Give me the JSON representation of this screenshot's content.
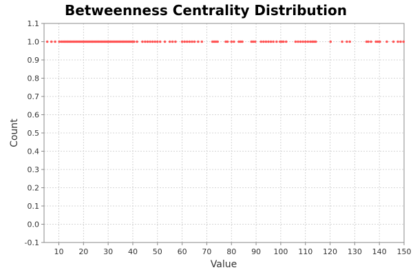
{
  "chart_data": {
    "type": "scatter",
    "title": "Betweenness Centrality Distribution",
    "xlabel": "Value",
    "ylabel": "Count",
    "xlim": [
      4,
      150
    ],
    "ylim": [
      -0.1,
      1.1
    ],
    "x_ticks": [
      10,
      20,
      30,
      40,
      50,
      60,
      70,
      80,
      90,
      100,
      110,
      120,
      130,
      140,
      150
    ],
    "y_ticks": [
      -0.1,
      0.0,
      0.1,
      0.2,
      0.3,
      0.4,
      0.5,
      0.6,
      0.7,
      0.8,
      0.9,
      1.0,
      1.1
    ],
    "grid": true,
    "legend": "none",
    "series": [
      {
        "color": "#ff5555",
        "points": [
          [
            5.3,
            1
          ],
          [
            7,
            1
          ],
          [
            8.5,
            1
          ],
          [
            10.2,
            1
          ],
          [
            11,
            1
          ],
          [
            11.7,
            1
          ],
          [
            12.3,
            1
          ],
          [
            12.9,
            1
          ],
          [
            13.5,
            1
          ],
          [
            14.1,
            1
          ],
          [
            14.7,
            1
          ],
          [
            15.3,
            1
          ],
          [
            15.9,
            1
          ],
          [
            16.5,
            1
          ],
          [
            17.1,
            1
          ],
          [
            17.7,
            1
          ],
          [
            18.3,
            1
          ],
          [
            18.9,
            1
          ],
          [
            19.5,
            1
          ],
          [
            20.1,
            1
          ],
          [
            20.7,
            1
          ],
          [
            21.3,
            1
          ],
          [
            21.9,
            1
          ],
          [
            22.5,
            1
          ],
          [
            23.1,
            1
          ],
          [
            23.7,
            1
          ],
          [
            24.3,
            1
          ],
          [
            24.9,
            1
          ],
          [
            25.5,
            1
          ],
          [
            26.1,
            1
          ],
          [
            26.7,
            1
          ],
          [
            27.3,
            1
          ],
          [
            27.9,
            1
          ],
          [
            28.5,
            1
          ],
          [
            29.1,
            1
          ],
          [
            29.7,
            1
          ],
          [
            30.3,
            1
          ],
          [
            30.9,
            1
          ],
          [
            31.5,
            1
          ],
          [
            32.1,
            1
          ],
          [
            32.7,
            1
          ],
          [
            33.3,
            1
          ],
          [
            33.9,
            1
          ],
          [
            34.5,
            1
          ],
          [
            35.1,
            1
          ],
          [
            35.7,
            1
          ],
          [
            36.3,
            1
          ],
          [
            36.9,
            1
          ],
          [
            37.5,
            1
          ],
          [
            38.1,
            1
          ],
          [
            38.7,
            1
          ],
          [
            39.3,
            1
          ],
          [
            39.9,
            1
          ],
          [
            40.5,
            1
          ],
          [
            41.7,
            1
          ],
          [
            43.9,
            1
          ],
          [
            45,
            1
          ],
          [
            46,
            1
          ],
          [
            47,
            1
          ],
          [
            48,
            1
          ],
          [
            49,
            1
          ],
          [
            50,
            1
          ],
          [
            51.1,
            1
          ],
          [
            53,
            1
          ],
          [
            55,
            1
          ],
          [
            56.1,
            1
          ],
          [
            57.3,
            1
          ],
          [
            60,
            1
          ],
          [
            61,
            1
          ],
          [
            62,
            1
          ],
          [
            63,
            1
          ],
          [
            64,
            1
          ],
          [
            65,
            1
          ],
          [
            66.5,
            1
          ],
          [
            68,
            1
          ],
          [
            72.3,
            1
          ],
          [
            73,
            1
          ],
          [
            73.7,
            1
          ],
          [
            74.4,
            1
          ],
          [
            77.7,
            1
          ],
          [
            78.4,
            1
          ],
          [
            80,
            1
          ],
          [
            81,
            1
          ],
          [
            83,
            1
          ],
          [
            83.7,
            1
          ],
          [
            84.4,
            1
          ],
          [
            88.1,
            1
          ],
          [
            88.8,
            1
          ],
          [
            89.6,
            1
          ],
          [
            92,
            1
          ],
          [
            93,
            1
          ],
          [
            94,
            1
          ],
          [
            95,
            1
          ],
          [
            96,
            1
          ],
          [
            97,
            1
          ],
          [
            98.3,
            1
          ],
          [
            99.7,
            1
          ],
          [
            100.4,
            1
          ],
          [
            101.1,
            1
          ],
          [
            102.2,
            1
          ],
          [
            106,
            1
          ],
          [
            107,
            1
          ],
          [
            108,
            1
          ],
          [
            109,
            1
          ],
          [
            110,
            1
          ],
          [
            111,
            1
          ],
          [
            112,
            1
          ],
          [
            112.8,
            1
          ],
          [
            113.5,
            1
          ],
          [
            114.2,
            1
          ],
          [
            120.2,
            1
          ],
          [
            124.9,
            1
          ],
          [
            126.8,
            1
          ],
          [
            128,
            1
          ],
          [
            134.8,
            1
          ],
          [
            135.5,
            1
          ],
          [
            136.6,
            1
          ],
          [
            138.6,
            1
          ],
          [
            139.4,
            1
          ],
          [
            140.2,
            1
          ],
          [
            143,
            1
          ],
          [
            145.7,
            1
          ],
          [
            147.5,
            1
          ],
          [
            148.6,
            1
          ],
          [
            149.8,
            1
          ]
        ]
      }
    ]
  }
}
